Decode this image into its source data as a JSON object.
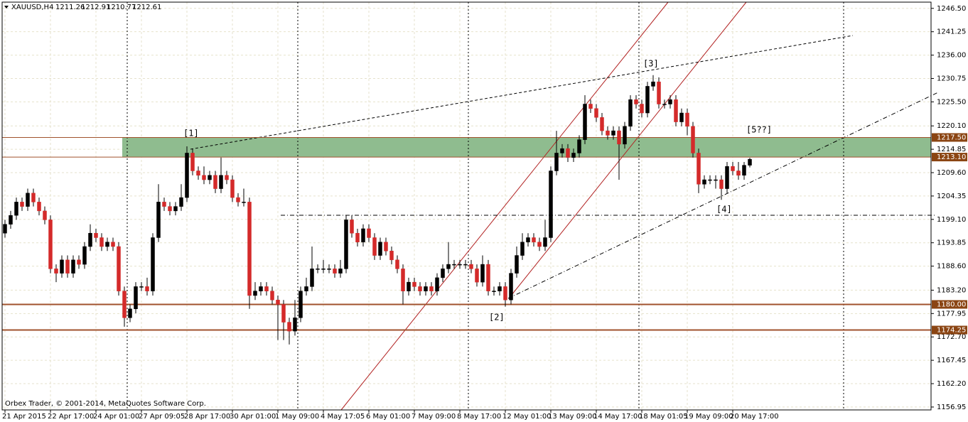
{
  "chart_data": {
    "type": "candlestick",
    "title": "XAUUSD,H4",
    "footnote": "Orbex Trader, © 2001-2014, MetaQuotes Software Corp.",
    "categories": [
      "21 Apr 2015",
      null,
      null,
      null,
      null,
      null,
      null,
      null,
      "22 Apr 17:00",
      null,
      null,
      null,
      null,
      null,
      null,
      null,
      "24 Apr 01:00",
      null,
      null,
      null,
      null,
      null,
      null,
      null,
      "27 Apr 09:05",
      null,
      null,
      null,
      null,
      null,
      null,
      null,
      "28 Apr 17:00",
      null,
      null,
      null,
      null,
      null,
      null,
      null,
      "30 Apr 01:00",
      null,
      null,
      null,
      null,
      null,
      null,
      null,
      "1 May 09:00",
      null,
      null,
      null,
      null,
      null,
      null,
      null,
      "4 May 17:05",
      null,
      null,
      null,
      null,
      null,
      null,
      null,
      "6 May 01:00",
      null,
      null,
      null,
      null,
      null,
      null,
      null,
      "7 May 09:00",
      null,
      null,
      null,
      null,
      null,
      null,
      null,
      "8 May 17:00",
      null,
      null,
      null,
      null,
      null,
      null,
      null,
      "12 May 01:00",
      null,
      null,
      null,
      null,
      null,
      null,
      null,
      "13 May 09:00",
      null,
      null,
      null,
      null,
      null,
      null,
      null,
      "14 May 17:00",
      null,
      null,
      null,
      null,
      null,
      null,
      null,
      "18 May 01:05",
      null,
      null,
      null,
      null,
      null,
      null,
      null,
      "19 May 09:00",
      null,
      null,
      null,
      null,
      null,
      null,
      null,
      "20 May 17:00",
      null,
      null,
      null
    ],
    "open": [
      1196,
      1198,
      1200,
      1203,
      1202,
      1205,
      1203,
      1201,
      1199,
      1188,
      1187,
      1190,
      1187,
      1190,
      1189,
      1193,
      1196,
      1195,
      1193,
      1194,
      1193,
      1183,
      1177,
      1179,
      1184,
      1184,
      1183,
      1195,
      1203,
      1202,
      1201,
      1202,
      1204,
      1214,
      1210,
      1209,
      1208,
      1209,
      1206,
      1209,
      1208,
      1204,
      1203,
      1203,
      1182,
      1183,
      1184,
      1183,
      1181,
      1180,
      1176,
      1174,
      1177,
      1183,
      1184,
      1188,
      1188,
      1188,
      1188,
      1187,
      1188,
      1199,
      1196,
      1194,
      1197,
      1195,
      1191,
      1194,
      1192,
      1190,
      1188,
      1183,
      1185,
      1184,
      1183,
      1184,
      1183,
      1186,
      1188,
      1189,
      1189,
      1189,
      1189,
      1188,
      1185,
      1189,
      1183,
      1183,
      1184,
      1181,
      1187,
      1191,
      1194,
      1195,
      1194,
      1193,
      1195,
      1210,
      1214,
      1215,
      1213,
      1214,
      1217,
      1225,
      1224,
      1222,
      1219,
      1218,
      1219,
      1216,
      1220,
      1226,
      1225,
      1223,
      1229,
      1230,
      1225,
      1225,
      1226,
      1221,
      1223,
      1220,
      1214,
      1207,
      1208,
      1208,
      1208,
      1206,
      1211,
      1210,
      1209,
      1211.26
    ],
    "high": [
      1199,
      1201,
      1204,
      1204,
      1206,
      1206,
      1204,
      1202,
      1200,
      1189,
      1191,
      1191,
      1191,
      1191,
      1194,
      1198,
      1197,
      1196,
      1195,
      1195,
      1194,
      1184,
      1180,
      1185,
      1185,
      1186,
      1196,
      1207,
      1204,
      1203,
      1203,
      1207,
      1215.5,
      1215,
      1211,
      1211,
      1210,
      1210,
      1213,
      1210,
      1209,
      1205,
      1206,
      1204,
      1185,
      1185,
      1185,
      1184,
      1182,
      1181,
      1177,
      1181,
      1184,
      1186,
      1193,
      1189,
      1190,
      1189,
      1189,
      1190,
      1200,
      1200,
      1197,
      1198,
      1198,
      1196,
      1195,
      1195,
      1193,
      1191,
      1189,
      1186,
      1186,
      1185,
      1185,
      1185,
      1187,
      1189,
      1194,
      1190,
      1190,
      1190,
      1190,
      1189,
      1191,
      1190,
      1184,
      1185,
      1185,
      1188,
      1193,
      1196,
      1196,
      1196,
      1195,
      1199,
      1211,
      1219,
      1216,
      1216,
      1215,
      1218,
      1227,
      1226,
      1225,
      1223,
      1220,
      1220,
      1220,
      1221,
      1227,
      1227,
      1226,
      1230,
      1231.5,
      1231,
      1226,
      1227,
      1227,
      1224,
      1224,
      1221,
      1215,
      1209,
      1209,
      1209,
      1209,
      1212,
      1212,
      1212,
      1212,
      1212.91
    ],
    "low": [
      1195,
      1197,
      1199,
      1201,
      1201,
      1202,
      1200,
      1198,
      1187,
      1185,
      1186,
      1186,
      1186,
      1188,
      1188,
      1192,
      1194,
      1192,
      1192,
      1192,
      1182,
      1175,
      1176,
      1178,
      1183,
      1182,
      1182,
      1194,
      1201,
      1200,
      1200,
      1201,
      1203,
      1209,
      1208,
      1207,
      1207,
      1205,
      1205,
      1207,
      1203,
      1202,
      1202,
      1179,
      1181,
      1182,
      1182,
      1180,
      1172,
      1172,
      1171,
      1173,
      1176,
      1182,
      1183,
      1187,
      1187,
      1187,
      1186,
      1186,
      1187,
      1195,
      1193,
      1193,
      1194,
      1190,
      1190,
      1191,
      1189,
      1187,
      1180,
      1182,
      1183,
      1182,
      1182,
      1182,
      1182,
      1185,
      1187,
      1188,
      1188,
      1188,
      1187,
      1184,
      1184,
      1182,
      1182,
      1182,
      1179.5,
      1180,
      1186,
      1190,
      1193,
      1193,
      1192,
      1192,
      1194,
      1209,
      1213,
      1212,
      1212,
      1213,
      1216,
      1223,
      1221,
      1218,
      1217,
      1217,
      1208,
      1215,
      1219,
      1224,
      1222,
      1222,
      1228,
      1224,
      1224,
      1224,
      1220,
      1220,
      1218,
      1213,
      1205,
      1206,
      1207,
      1206,
      1203.5,
      1205,
      1209,
      1208,
      1208,
      1210.77
    ],
    "close": [
      1198,
      1200,
      1203,
      1202,
      1205,
      1203,
      1201,
      1199,
      1188,
      1187,
      1190,
      1187,
      1190,
      1189,
      1193,
      1196,
      1195,
      1193,
      1194,
      1193,
      1183,
      1177,
      1179,
      1184,
      1184,
      1183,
      1195,
      1203,
      1202,
      1201,
      1202,
      1204,
      1214,
      1210,
      1209,
      1208,
      1209,
      1206,
      1209,
      1208,
      1204,
      1203,
      1203,
      1182,
      1183,
      1184,
      1183,
      1181,
      1180,
      1176,
      1174,
      1177,
      1183,
      1184,
      1188,
      1188,
      1188,
      1188,
      1187,
      1188,
      1199,
      1196,
      1194,
      1197,
      1195,
      1191,
      1194,
      1192,
      1190,
      1188,
      1183,
      1185,
      1184,
      1183,
      1184,
      1183,
      1186,
      1188,
      1189,
      1189,
      1189,
      1189,
      1188,
      1185,
      1189,
      1183,
      1183,
      1184,
      1181,
      1187,
      1191,
      1194,
      1195,
      1194,
      1193,
      1195,
      1210,
      1214,
      1215,
      1213,
      1214,
      1217,
      1225,
      1224,
      1222,
      1219,
      1218,
      1219,
      1216,
      1220,
      1226,
      1225,
      1223,
      1229,
      1230,
      1225,
      1225,
      1226,
      1221,
      1223,
      1220,
      1214,
      1207,
      1208,
      1208,
      1208,
      1206,
      1211,
      1210,
      1209,
      1211.26,
      1212.61
    ],
    "up_color": "#000000",
    "down_color": "#d42a2a",
    "ylim": [
      1156.3,
      1247.9
    ],
    "yticks": [
      {
        "value": 1246.5,
        "label": "1246.50"
      },
      {
        "value": 1241.25,
        "label": "1241.25"
      },
      {
        "value": 1236,
        "label": "1236.00"
      },
      {
        "value": 1230.75,
        "label": "1230.75"
      },
      {
        "value": 1225.5,
        "label": "1225.50"
      },
      {
        "value": 1220.1,
        "label": "1220.10"
      },
      {
        "value": 1214.85,
        "label": "1214.85"
      },
      {
        "value": 1209.6,
        "label": "1209.60"
      },
      {
        "value": 1204.35,
        "label": "1204.35"
      },
      {
        "value": 1199.1,
        "label": "1199.10"
      },
      {
        "value": 1193.85,
        "label": "1193.85"
      },
      {
        "value": 1188.6,
        "label": "1188.60"
      },
      {
        "value": 1183.2,
        "label": "1183.20"
      },
      {
        "value": 1177.95,
        "label": "1177.95"
      },
      {
        "value": 1172.7,
        "label": "1172.70"
      },
      {
        "value": 1167.45,
        "label": "1167.45"
      },
      {
        "value": 1162.2,
        "label": "1162.20"
      },
      {
        "value": 1156.95,
        "label": "1156.95"
      }
    ],
    "levels": [
      {
        "value": 1217.5,
        "label": "1217.50"
      },
      {
        "value": 1213.1,
        "label": "1213.10"
      },
      {
        "value": 1180,
        "label": "1180.00"
      },
      {
        "value": 1174.25,
        "label": "1174.25"
      }
    ],
    "annotations": [
      "[1]",
      "[2]",
      "[3]",
      "[4]",
      "[5??]"
    ],
    "grid": true
  }
}
